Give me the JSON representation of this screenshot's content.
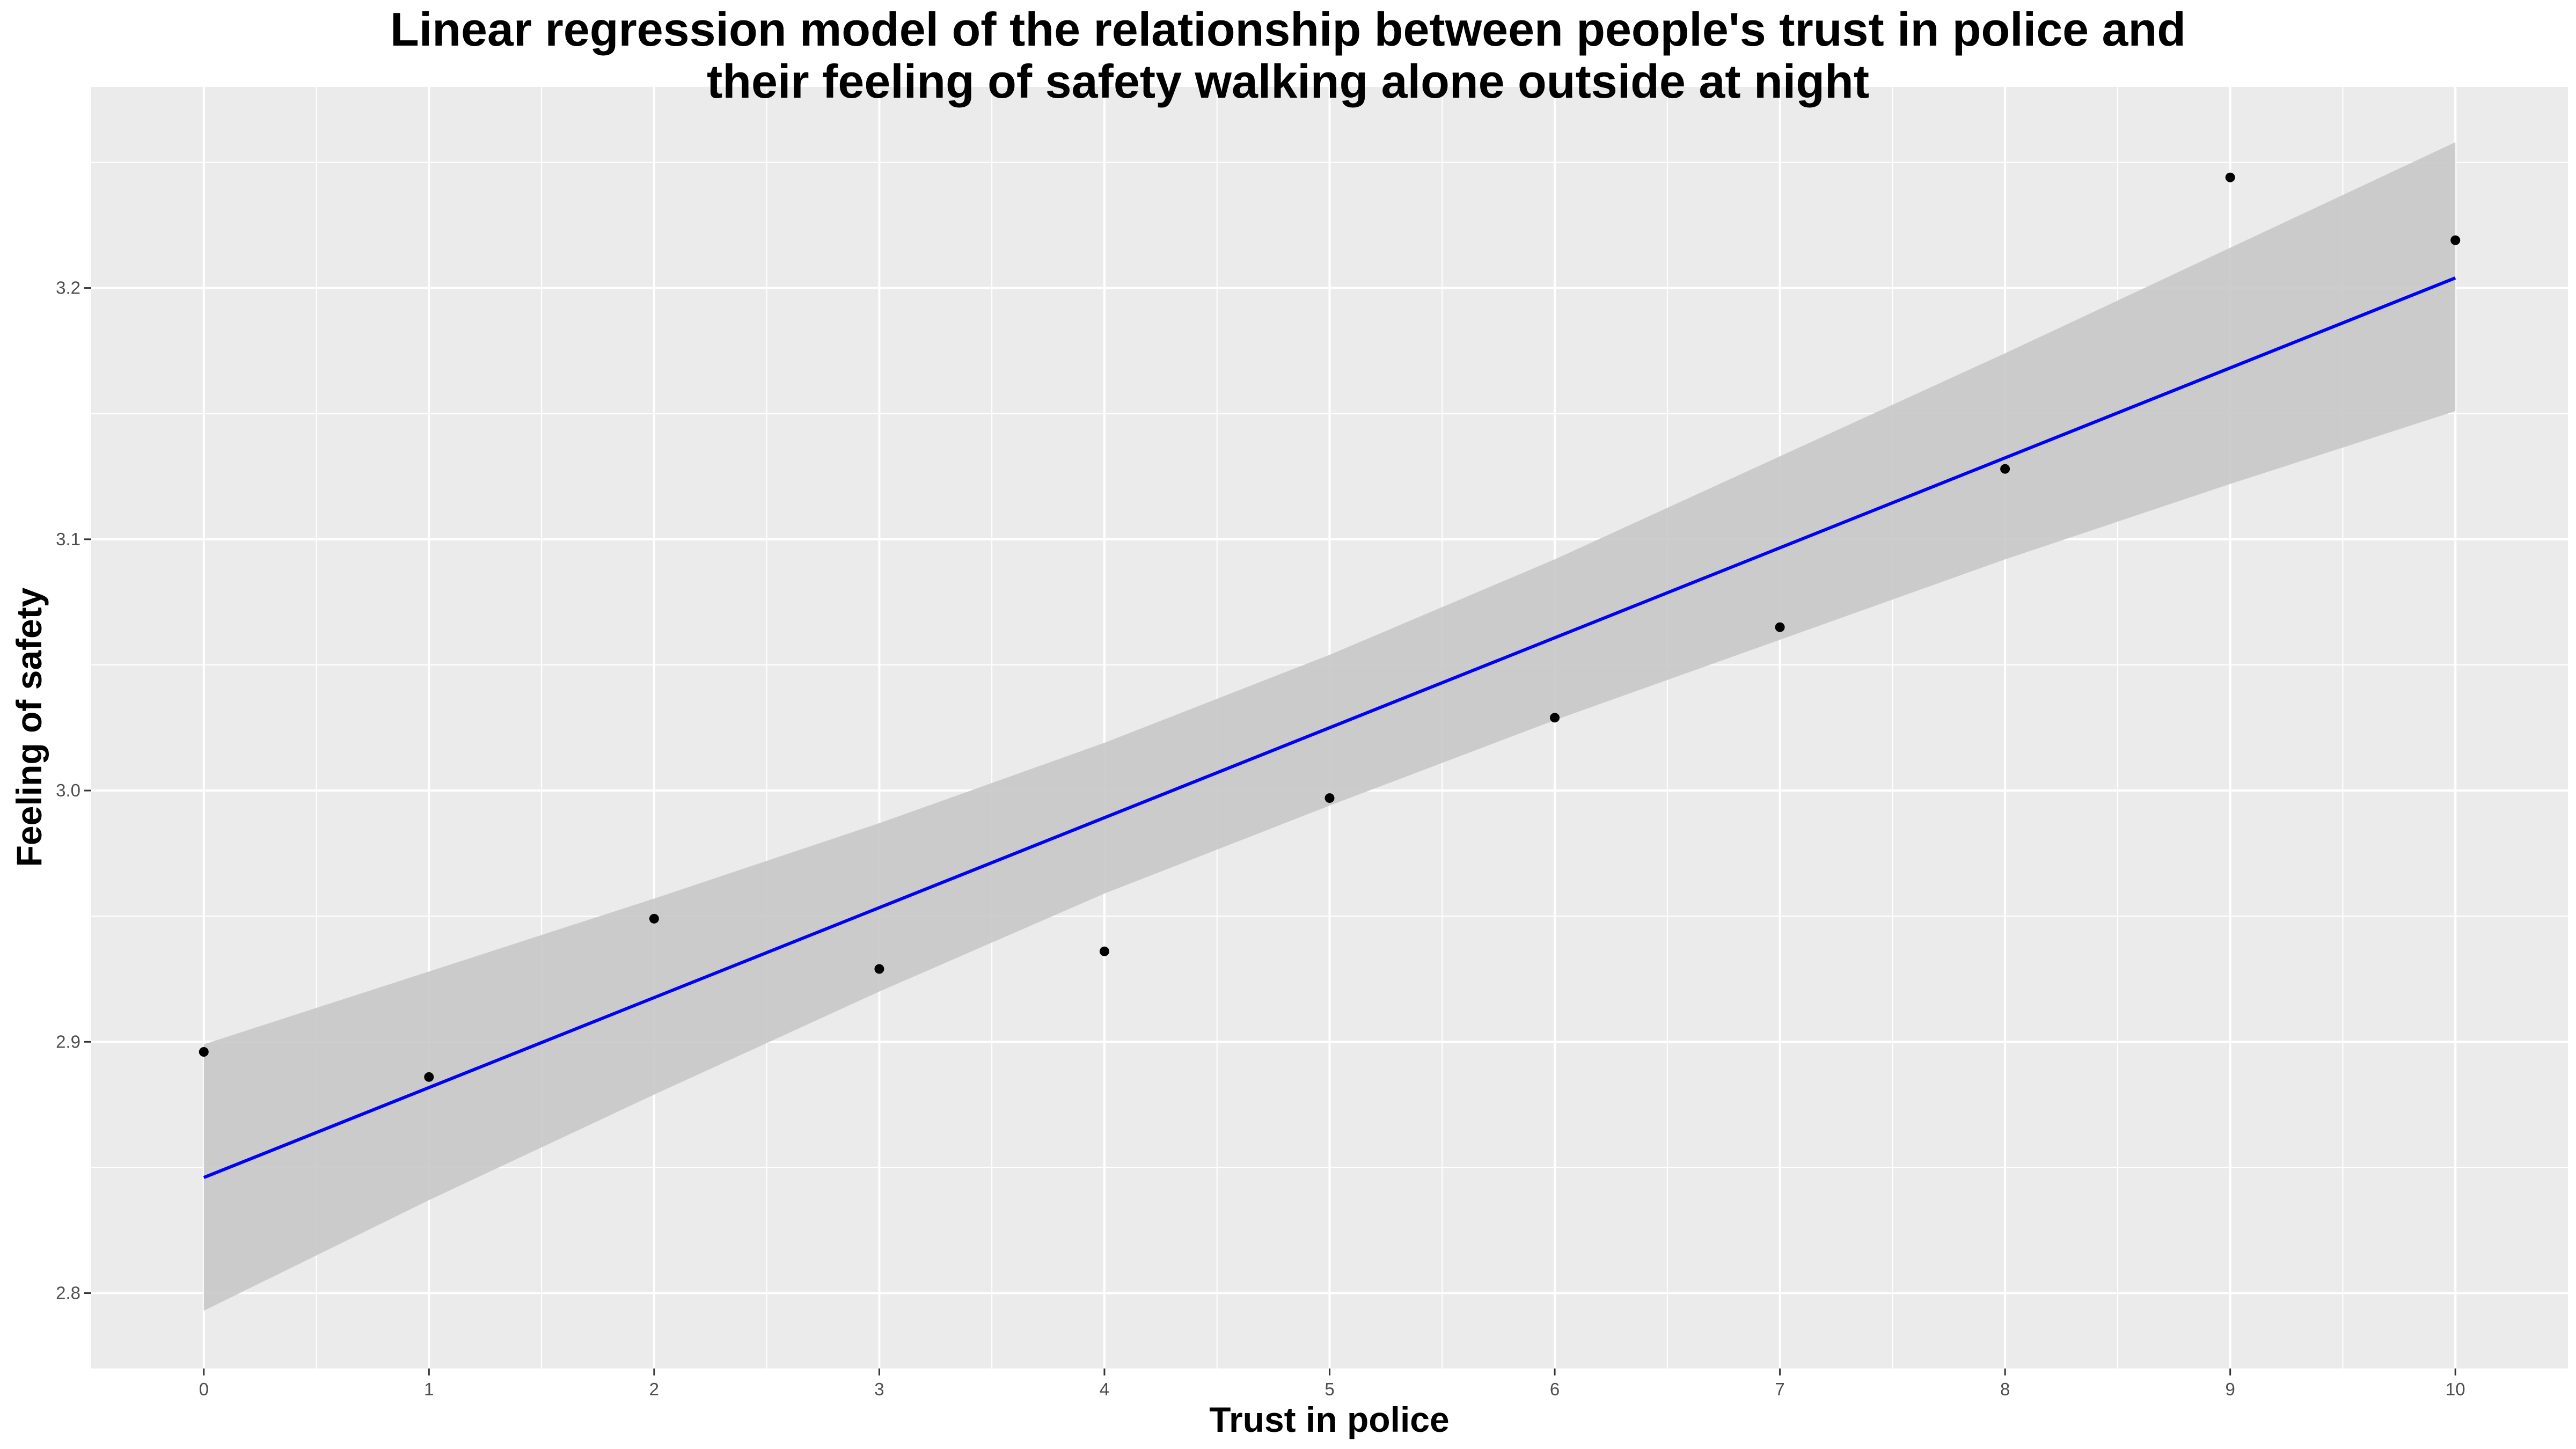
{
  "chart_data": {
    "type": "scatter",
    "title_lines": [
      "Linear regression model of the relationship between people's trust in police and",
      "their feeling of safety walking alone outside at night"
    ],
    "xlabel": "Trust in police",
    "ylabel": "Feeling of safety",
    "xlim": [
      -0.5,
      10.5
    ],
    "ylim": [
      2.77,
      3.28
    ],
    "x_ticks": [
      0,
      1,
      2,
      3,
      4,
      5,
      6,
      7,
      8,
      9,
      10
    ],
    "x_tick_labels": [
      "0",
      "1",
      "2",
      "3",
      "4",
      "5",
      "6",
      "7",
      "8",
      "9",
      "10"
    ],
    "y_ticks": [
      2.8,
      2.9,
      3.0,
      3.1,
      3.2
    ],
    "y_tick_labels": [
      "2.8",
      "2.9",
      "3.0",
      "3.1",
      "3.2"
    ],
    "grid": true,
    "points": {
      "x": [
        0,
        1,
        2,
        3,
        4,
        5,
        6,
        7,
        8,
        9,
        10
      ],
      "y": [
        2.896,
        2.886,
        2.949,
        2.929,
        2.936,
        2.997,
        3.029,
        3.065,
        3.128,
        3.244,
        3.219
      ]
    },
    "regression_line": {
      "x": [
        0,
        10
      ],
      "y": [
        2.846,
        3.204
      ],
      "color": "#0000ff"
    },
    "confidence_band": {
      "x": [
        0,
        1,
        2,
        3,
        4,
        5,
        6,
        7,
        8,
        9,
        10
      ],
      "lower": [
        2.793,
        2.837,
        2.879,
        2.92,
        2.959,
        2.994,
        3.028,
        3.06,
        3.092,
        3.122,
        3.151
      ],
      "upper": [
        2.899,
        2.928,
        2.957,
        2.987,
        3.019,
        3.054,
        3.092,
        3.133,
        3.174,
        3.216,
        3.258
      ],
      "color": "#c8c8c8"
    },
    "colors": {
      "panel_background": "#ebebeb",
      "grid_major": "#ffffff",
      "points": "#000000"
    }
  }
}
